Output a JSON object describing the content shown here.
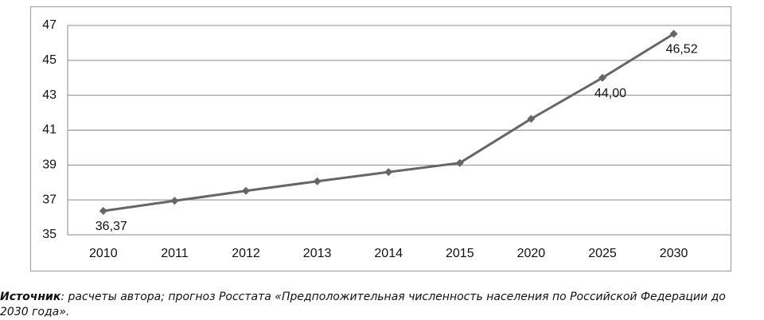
{
  "chart_data": {
    "type": "line",
    "categories": [
      "2010",
      "2011",
      "2012",
      "2013",
      "2014",
      "2015",
      "2020",
      "2025",
      "2030"
    ],
    "values": [
      36.37,
      36.95,
      37.52,
      38.07,
      38.6,
      39.12,
      41.65,
      44.0,
      46.52
    ],
    "value_labels": [
      "36,37",
      null,
      null,
      null,
      null,
      null,
      null,
      "44,00",
      "46,52"
    ],
    "color": "#666666",
    "ylim": [
      35,
      47
    ],
    "yticks": [
      35,
      37,
      39,
      41,
      43,
      45,
      47
    ],
    "grid": true
  },
  "source_label": "Источник",
  "source_text": ": расчеты автора; прогноз Росстата «Предположительная численность населения по Российской Федерации до 2030 года»."
}
